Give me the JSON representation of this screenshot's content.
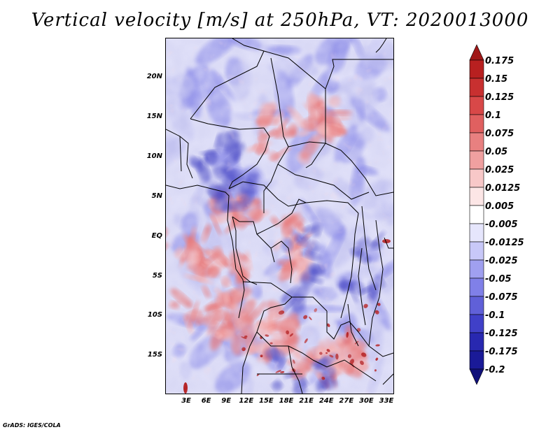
{
  "title": "Vertical velocity [m/s] at 250hPa, VT: 2020013000",
  "credit": "GrADS: IGES/COLA",
  "lat_labels": [
    "20N",
    "15N",
    "10N",
    "5N",
    "EQ",
    "5S",
    "10S",
    "15S"
  ],
  "lon_labels": [
    "3E",
    "6E",
    "9E",
    "12E",
    "15E",
    "18E",
    "21E",
    "24E",
    "27E",
    "30E",
    "33E"
  ],
  "colorbar": {
    "levels": [
      "0.175",
      "0.15",
      "0.125",
      "0.1",
      "0.075",
      "0.05",
      "0.025",
      "0.0125",
      "0.005",
      "-0.005",
      "-0.0125",
      "-0.025",
      "-0.05",
      "-0.075",
      "-0.1",
      "-0.125",
      "-0.175",
      "-0.2"
    ],
    "colors": [
      "#a01818",
      "#b82020",
      "#c83030",
      "#d84848",
      "#e06060",
      "#e88080",
      "#f0a0a0",
      "#f8c8c8",
      "#fce6e6",
      "#ffffff",
      "#e6e6fc",
      "#c8c8f8",
      "#a0a0f0",
      "#8080e8",
      "#6060d8",
      "#4040c8",
      "#2828b0",
      "#1a1a98",
      "#10107a"
    ]
  },
  "map_colors": {
    "strong_ascent": "#b01010",
    "ascent": "#e87878",
    "weak_ascent": "#f4b0b0",
    "weak_descent": "#c0c0f0",
    "descent": "#8a8ae8",
    "strong_descent": "#5050c8",
    "background": "#d9d9f5",
    "border": "#000000"
  }
}
